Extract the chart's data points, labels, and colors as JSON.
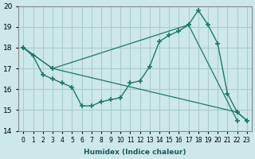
{
  "title": "",
  "xlabel": "Humidex (Indice chaleur)",
  "ylabel": "",
  "xlim": [
    -0.5,
    23.5
  ],
  "ylim": [
    14,
    20
  ],
  "yticks": [
    14,
    15,
    16,
    17,
    18,
    19,
    20
  ],
  "xtick_labels": [
    "0",
    "1",
    "2",
    "3",
    "4",
    "5",
    "6",
    "7",
    "8",
    "9",
    "10",
    "11",
    "12",
    "13",
    "14",
    "15",
    "16",
    "17",
    "18",
    "19",
    "20",
    "21",
    "22",
    "23"
  ],
  "background_color": "#cce8e8",
  "grid_color": "#aacccc",
  "line_color": "#1a7a6a",
  "line1_x": [
    0,
    1,
    2,
    3,
    4,
    5,
    6,
    7,
    8,
    9,
    10,
    11,
    12,
    13,
    14,
    15,
    16,
    17,
    18,
    19,
    20,
    21,
    22,
    23
  ],
  "line1_y": [
    18.0,
    17.6,
    16.7,
    16.5,
    16.3,
    16.1,
    15.2,
    15.2,
    15.4,
    15.5,
    15.6,
    16.3,
    16.4,
    17.1,
    18.3,
    18.6,
    18.8,
    19.1,
    19.8,
    19.1,
    18.2,
    15.8,
    14.9,
    14.5
  ],
  "line2_x": [
    0,
    3,
    17,
    22
  ],
  "line2_y": [
    18.0,
    17.0,
    19.1,
    14.5
  ],
  "line3_x": [
    0,
    3,
    22,
    23
  ],
  "line3_y": [
    18.0,
    17.0,
    14.9,
    14.5
  ]
}
